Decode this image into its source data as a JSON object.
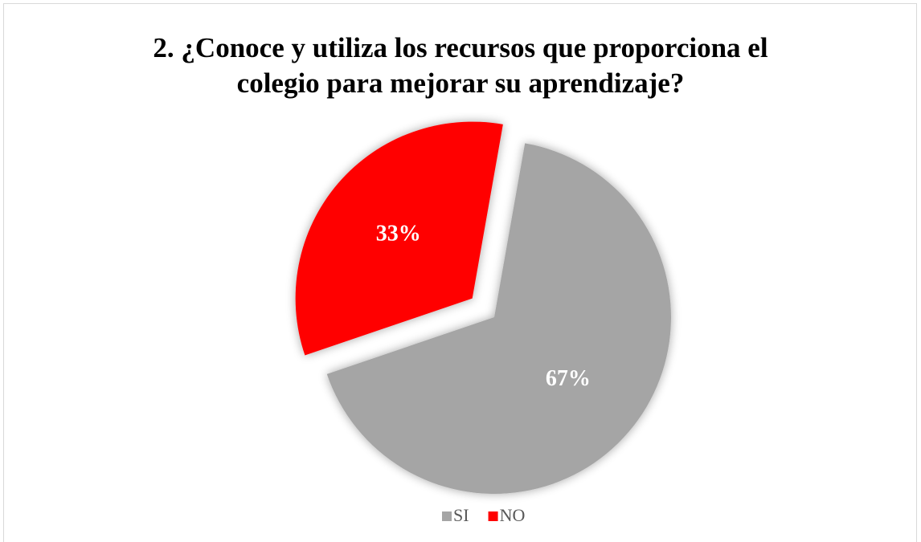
{
  "chart_data": {
    "type": "pie",
    "title": "2. ¿Conoce y utiliza los recursos que proporciona el colegio para mejorar su aprendizaje?",
    "categories": [
      "SI",
      "NO"
    ],
    "values": [
      67,
      33
    ],
    "value_labels": [
      "67%",
      "33%"
    ],
    "colors": [
      "#a5a5a5",
      "#ff0000"
    ],
    "legend": "bottom"
  }
}
